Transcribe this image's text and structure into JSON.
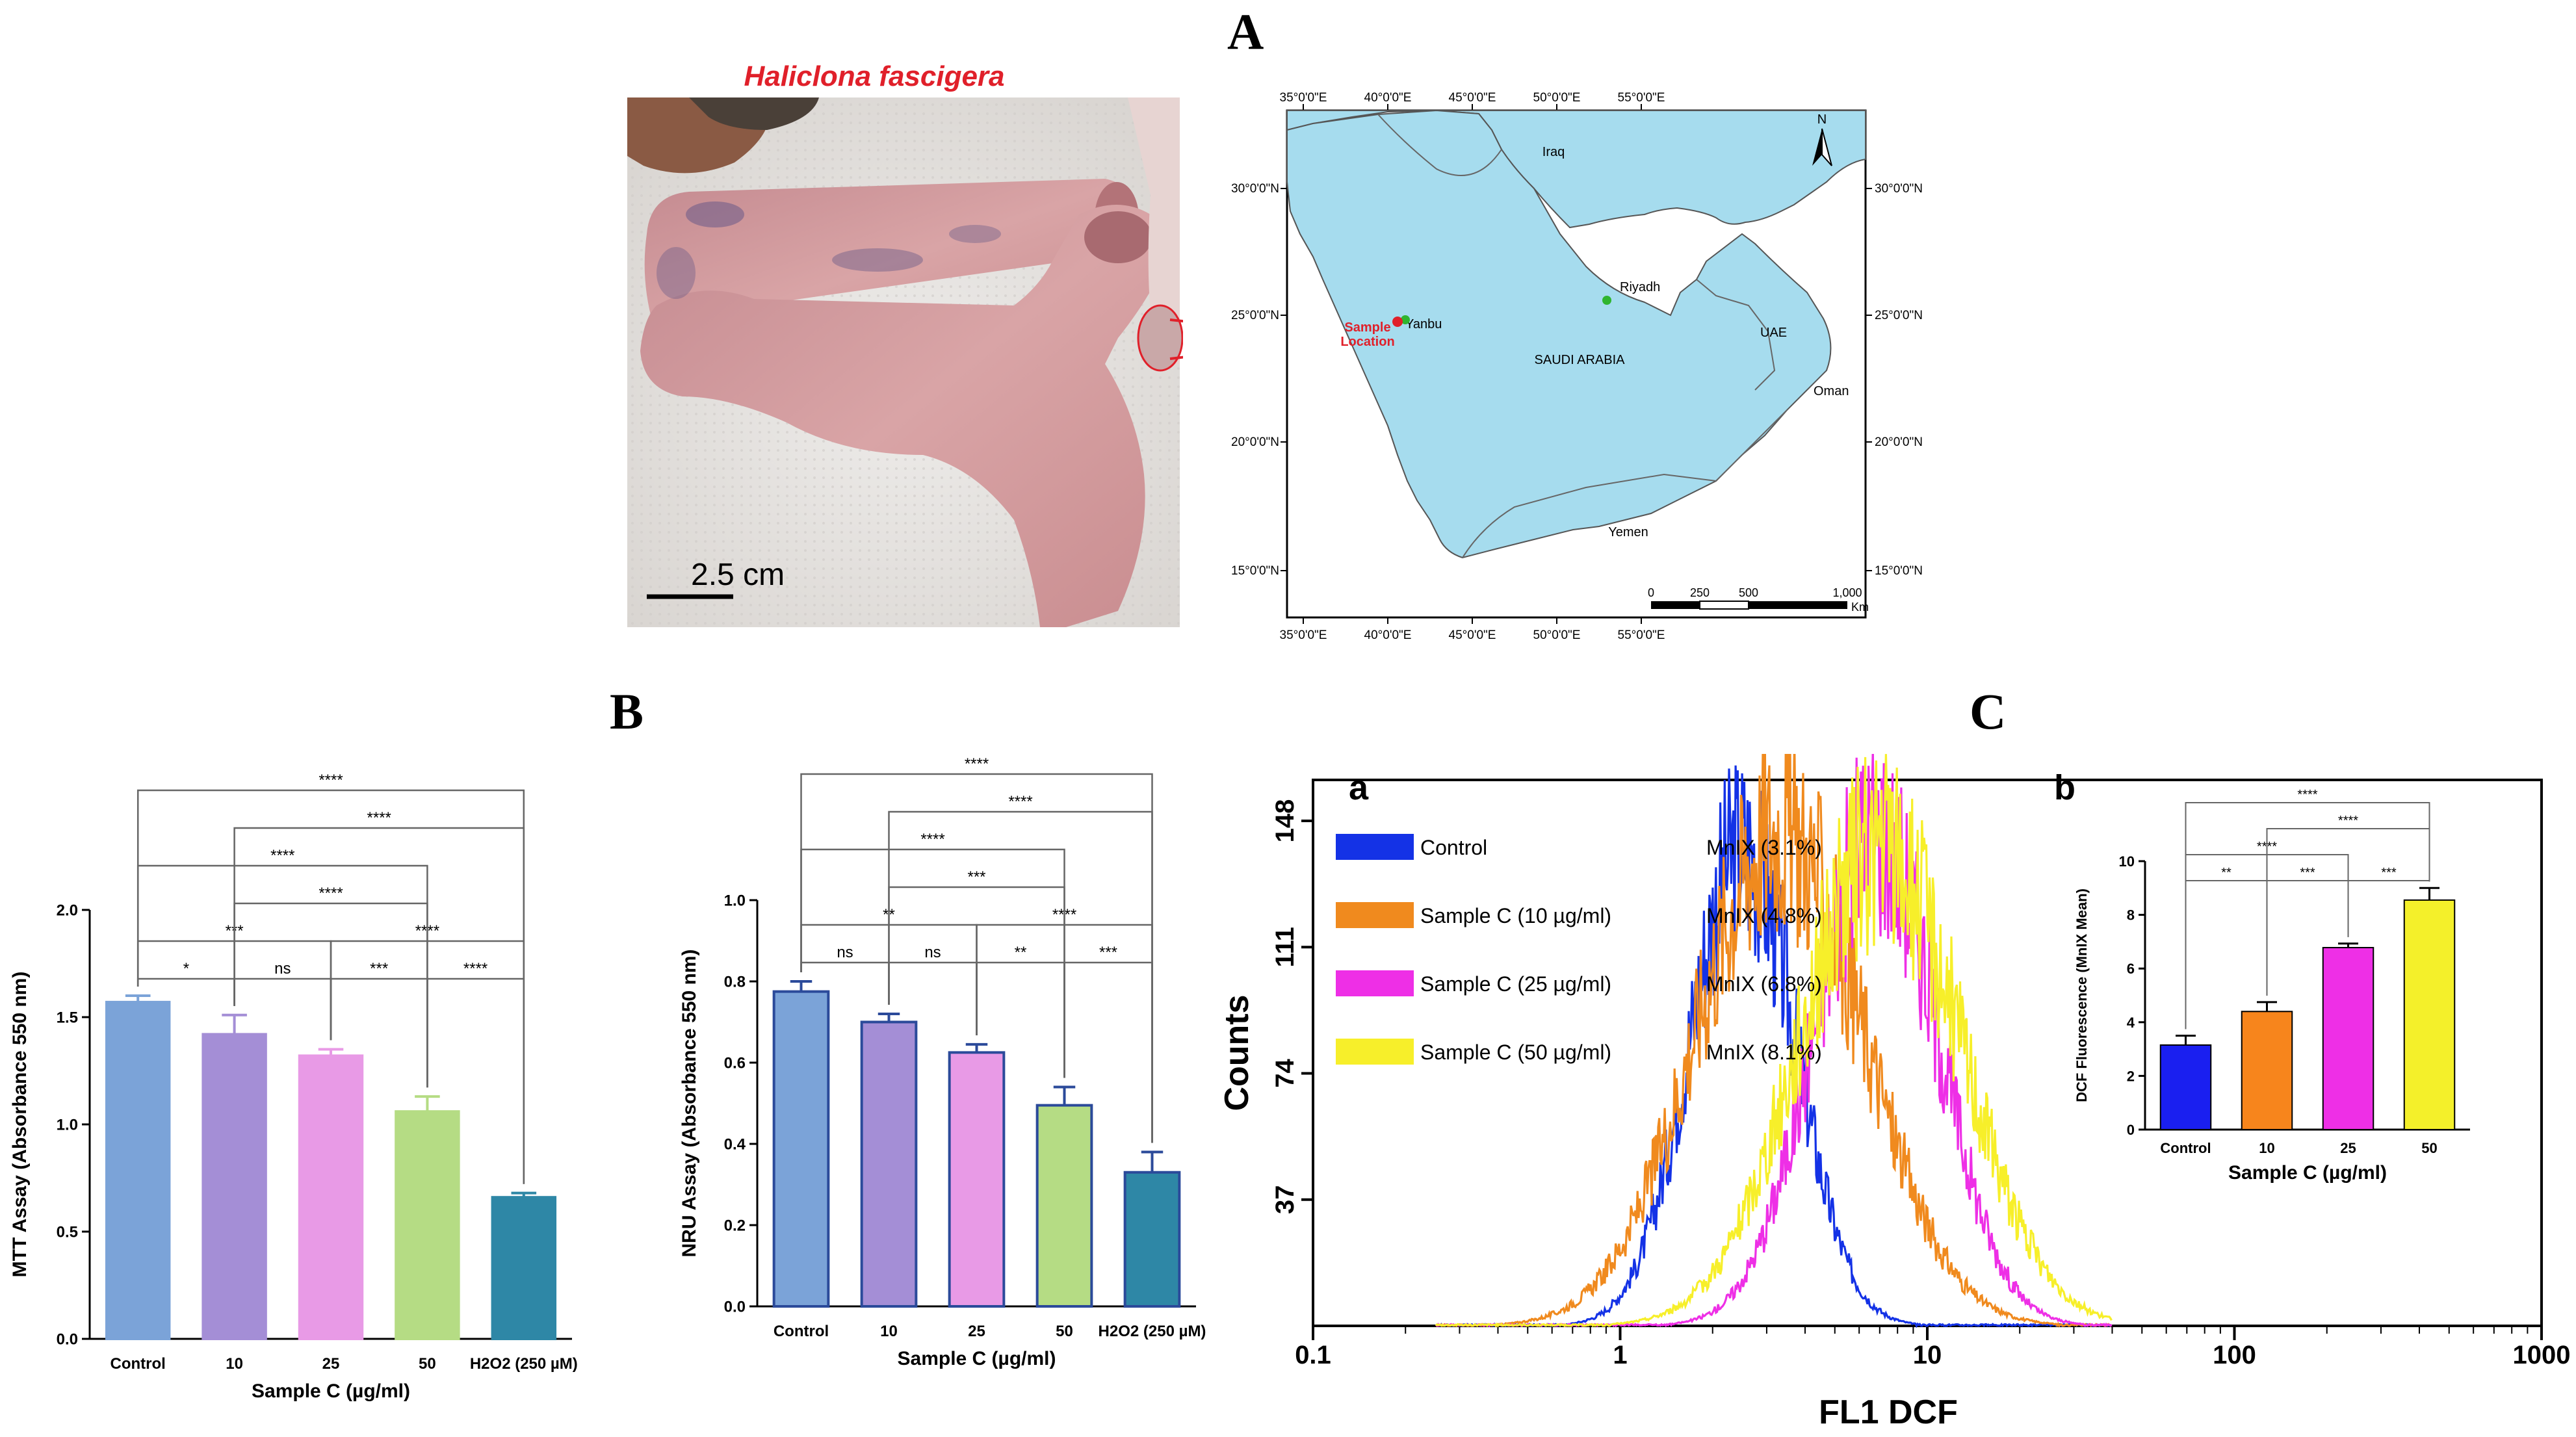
{
  "panel_letters": {
    "A": "A",
    "B": "B",
    "C": "C"
  },
  "photo": {
    "species": "Haliclona fascigera",
    "scale_label": "2.5 cm"
  },
  "map": {
    "lon_ticks": [
      "35°0'0\"E",
      "40°0'0\"E",
      "45°0'0\"E",
      "50°0'0\"E",
      "55°0'0\"E"
    ],
    "lat_ticks": [
      "30°0'0\"N",
      "25°0'0\"N",
      "20°0'0\"N",
      "15°0'0\"N"
    ],
    "places": {
      "iraq": "Iraq",
      "riyadh": "Riyadh",
      "yanbu": "Yanbu",
      "saudi": "SAUDI ARABIA",
      "uae": "UAE",
      "oman": "Oman",
      "yemen": "Yemen"
    },
    "sample_label_1": "Sample",
    "sample_label_2": "Location",
    "north": "N",
    "scale_ticks": [
      "0",
      "250",
      "500",
      "1,000"
    ],
    "scale_unit": "Km",
    "land_color": "#a6dcee",
    "marker_green": "#2fb52f",
    "marker_red": "#e0202a"
  },
  "colors": {
    "sig": "#000000"
  },
  "chart_data": [
    {
      "id": "mtt",
      "type": "bar",
      "categories": [
        "Control",
        "10",
        "25",
        "50",
        "H2O2 (250 µM)"
      ],
      "values": [
        1.57,
        1.42,
        1.32,
        1.06,
        0.66
      ],
      "errors": [
        0.03,
        0.09,
        0.03,
        0.07,
        0.02
      ],
      "colors": [
        "#7ba3d8",
        "#a48ed6",
        "#e89ae6",
        "#b5dc84",
        "#2e87a6"
      ],
      "xlabel": "Sample C (µg/ml)",
      "ylabel": "MTT Assay (Absorbance 550 nm)",
      "ylim": [
        0,
        2.0
      ],
      "yticks": [
        "0.0",
        "0.5",
        "1.0",
        "1.5",
        "2.0"
      ],
      "significance": [
        {
          "from": 0,
          "to": 1,
          "label": "*"
        },
        {
          "from": 1,
          "to": 2,
          "label": "ns"
        },
        {
          "from": 2,
          "to": 3,
          "label": "***"
        },
        {
          "from": 3,
          "to": 4,
          "label": "****"
        },
        {
          "from": 0,
          "to": 2,
          "label": "***"
        },
        {
          "from": 2,
          "to": 4,
          "label": "****"
        },
        {
          "from": 1,
          "to": 3,
          "label": "****"
        },
        {
          "from": 0,
          "to": 3,
          "label": "****"
        },
        {
          "from": 1,
          "to": 4,
          "label": "****"
        },
        {
          "from": 0,
          "to": 4,
          "label": "****"
        }
      ]
    },
    {
      "id": "nru",
      "type": "bar",
      "categories": [
        "Control",
        "10",
        "25",
        "50",
        "H2O2 (250 µM)"
      ],
      "values": [
        0.775,
        0.7,
        0.625,
        0.495,
        0.33
      ],
      "errors": [
        0.025,
        0.02,
        0.02,
        0.045,
        0.05
      ],
      "colors": [
        "#7ba3d8",
        "#a48ed6",
        "#e89ae6",
        "#b5dc84",
        "#2e87a6"
      ],
      "xlabel": "Sample C (µg/ml)",
      "ylabel": "NRU Assay (Absorbance 550 nm)",
      "ylim": [
        0,
        1.0
      ],
      "yticks": [
        "0.0",
        "0.2",
        "0.4",
        "0.6",
        "0.8",
        "1.0"
      ],
      "significance": [
        {
          "from": 0,
          "to": 1,
          "label": "ns"
        },
        {
          "from": 1,
          "to": 2,
          "label": "ns"
        },
        {
          "from": 2,
          "to": 3,
          "label": "**"
        },
        {
          "from": 3,
          "to": 4,
          "label": "***"
        },
        {
          "from": 0,
          "to": 2,
          "label": "**"
        },
        {
          "from": 2,
          "to": 4,
          "label": "****"
        },
        {
          "from": 1,
          "to": 3,
          "label": "***"
        },
        {
          "from": 0,
          "to": 3,
          "label": "****"
        },
        {
          "from": 1,
          "to": 4,
          "label": "****"
        },
        {
          "from": 0,
          "to": 4,
          "label": "****"
        }
      ]
    },
    {
      "id": "flow",
      "type": "line",
      "subpanel": "a",
      "xlabel": "FL1 DCF",
      "ylabel": "Counts",
      "xscale": "log",
      "xlim": [
        0.1,
        1000
      ],
      "ylim": [
        0,
        160
      ],
      "xticks": [
        "0.1",
        "1",
        "10",
        "100",
        "1000"
      ],
      "yticks": [
        "37",
        "74",
        "111",
        "148"
      ],
      "legend_text_color": "#000000",
      "series": [
        {
          "name": "Control",
          "mnix": "MnIX (3.1%)",
          "color": "#1432e6",
          "peak_x": 2.5,
          "peak_y": 140,
          "width": 0.17
        },
        {
          "name": "Sample C (10 µg/ml)",
          "mnix": "MnIX (4.8%)",
          "color": "#f08a1e",
          "peak_x": 3.3,
          "peak_y": 145,
          "width": 0.27
        },
        {
          "name": "Sample C (25 µg/ml)",
          "mnix": "MnIX (6.8%)",
          "color": "#ee2fe6",
          "peak_x": 6.8,
          "peak_y": 145,
          "width": 0.2
        },
        {
          "name": "Sample C (50 µg/ml)",
          "mnix": "MnIX (8.1%)",
          "color": "#f7ef2a",
          "peak_x": 7.0,
          "peak_y": 140,
          "width": 0.26
        }
      ]
    },
    {
      "id": "dcf",
      "type": "bar",
      "subpanel": "b",
      "categories": [
        "Control",
        "10",
        "25",
        "50"
      ],
      "values": [
        3.15,
        4.4,
        6.78,
        8.55
      ],
      "errors": [
        0.35,
        0.35,
        0.15,
        0.45
      ],
      "colors": [
        "#1a1ff0",
        "#f7851c",
        "#ee2fe6",
        "#f4f02a"
      ],
      "xlabel": "Sample C (µg/ml)",
      "ylabel": "DCF Fluorescence (MnIX Mean)",
      "ylim": [
        0,
        10
      ],
      "yticks": [
        "0",
        "2",
        "4",
        "6",
        "8",
        "10"
      ],
      "significance": [
        {
          "from": 0,
          "to": 1,
          "label": "**"
        },
        {
          "from": 1,
          "to": 2,
          "label": "***"
        },
        {
          "from": 2,
          "to": 3,
          "label": "***"
        },
        {
          "from": 0,
          "to": 2,
          "label": "****"
        },
        {
          "from": 1,
          "to": 3,
          "label": "****"
        },
        {
          "from": 0,
          "to": 3,
          "label": "****"
        }
      ]
    }
  ]
}
